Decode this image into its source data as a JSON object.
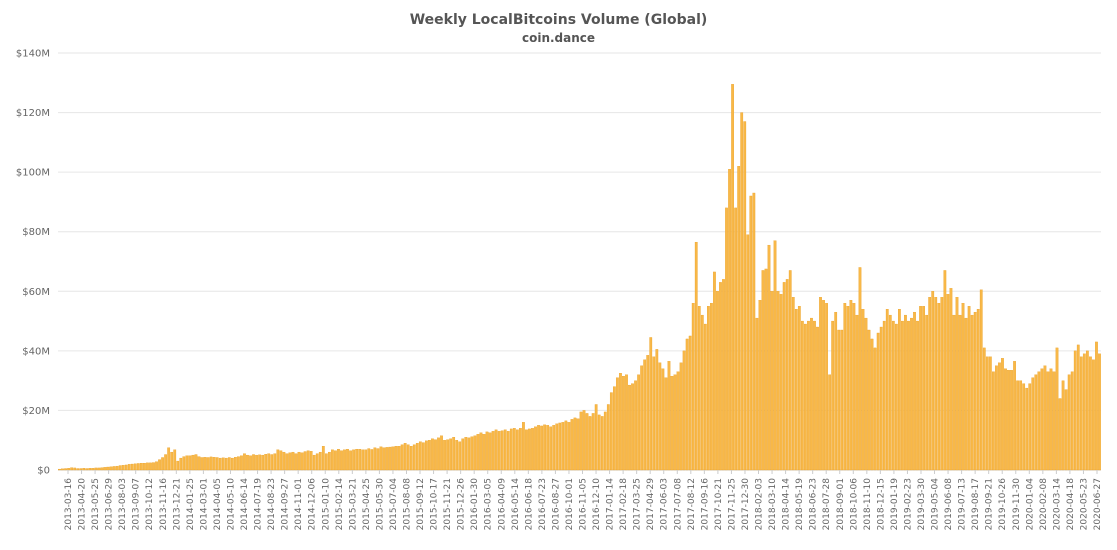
{
  "chart_data": {
    "type": "bar",
    "title": "Weekly LocalBitcoins Volume (Global)",
    "subtitle": "coin.dance",
    "xlabel": "",
    "ylabel": "",
    "ylim": [
      0,
      140
    ],
    "yticks": [
      "$0",
      "$20M",
      "$40M",
      "$60M",
      "$80M",
      "$100M",
      "$120M",
      "$140M"
    ],
    "grid": true,
    "legend": "none",
    "bar_color": "#f8b848",
    "bar_edge_color": "#e89a1a",
    "value_unit": "USD millions",
    "x_tick_labels": [
      "2013-03-16",
      "2013-04-20",
      "2013-05-25",
      "2013-06-29",
      "2013-08-03",
      "2013-09-07",
      "2013-10-12",
      "2013-11-16",
      "2013-12-21",
      "2014-01-25",
      "2014-03-01",
      "2014-04-05",
      "2014-05-10",
      "2014-06-14",
      "2014-07-19",
      "2014-08-23",
      "2014-09-27",
      "2014-11-01",
      "2014-12-06",
      "2015-01-10",
      "2015-02-14",
      "2015-03-21",
      "2015-04-25",
      "2015-05-30",
      "2015-07-04",
      "2015-08-08",
      "2015-09-12",
      "2015-10-17",
      "2015-11-21",
      "2015-12-26",
      "2016-01-30",
      "2016-03-05",
      "2016-04-09",
      "2016-05-14",
      "2016-06-18",
      "2016-07-23",
      "2016-08-27",
      "2016-10-01",
      "2016-11-05",
      "2016-12-10",
      "2017-01-14",
      "2017-02-18",
      "2017-03-25",
      "2017-04-29",
      "2017-06-03",
      "2017-07-08",
      "2017-08-12",
      "2017-09-16",
      "2017-10-21",
      "2017-11-25",
      "2017-12-30",
      "2018-02-03",
      "2018-03-10",
      "2018-04-14",
      "2018-05-19",
      "2018-06-23",
      "2018-07-28",
      "2018-09-01",
      "2018-10-06",
      "2018-11-10",
      "2018-12-15",
      "2019-01-19",
      "2019-02-23",
      "2019-03-30",
      "2019-05-04",
      "2019-06-08",
      "2019-07-13",
      "2019-08-17",
      "2019-09-21",
      "2019-10-26",
      "2019-11-30",
      "2020-01-04",
      "2020-02-08",
      "2020-03-14",
      "2020-04-18",
      "2020-05-23",
      "2020-06-27"
    ],
    "values": [
      0.3,
      0.4,
      0.5,
      0.6,
      0.8,
      0.7,
      0.5,
      0.5,
      0.6,
      0.5,
      0.6,
      0.6,
      0.7,
      0.7,
      0.8,
      0.9,
      1.0,
      1.1,
      1.2,
      1.3,
      1.5,
      1.6,
      1.7,
      1.9,
      2.0,
      2.1,
      2.2,
      2.3,
      2.3,
      2.4,
      2.4,
      2.5,
      2.8,
      3.5,
      4.2,
      5.2,
      7.5,
      6.0,
      6.8,
      3.0,
      4.0,
      4.5,
      4.8,
      4.8,
      5.0,
      5.2,
      4.5,
      4.2,
      4.3,
      4.2,
      4.4,
      4.3,
      4.2,
      4.0,
      4.1,
      4.0,
      4.2,
      4.0,
      4.3,
      4.5,
      4.8,
      5.5,
      5.0,
      4.8,
      5.2,
      5.0,
      5.1,
      5.0,
      5.3,
      5.5,
      5.2,
      5.5,
      6.8,
      6.5,
      6.0,
      5.5,
      5.8,
      6.0,
      5.5,
      6.0,
      5.8,
      6.2,
      6.5,
      6.3,
      5.0,
      5.5,
      6.0,
      8.0,
      5.5,
      6.0,
      6.8,
      6.5,
      7.0,
      6.5,
      6.8,
      7.0,
      6.5,
      6.8,
      7.0,
      7.0,
      6.8,
      6.8,
      7.2,
      6.9,
      7.5,
      7.2,
      7.8,
      7.5,
      7.6,
      7.7,
      7.8,
      8.0,
      8.0,
      8.5,
      9.0,
      8.5,
      8.0,
      8.5,
      9.0,
      9.5,
      9.2,
      9.8,
      10.0,
      10.5,
      10.2,
      10.8,
      11.5,
      10.0,
      10.2,
      10.5,
      11.0,
      10.0,
      9.5,
      10.5,
      11.0,
      10.8,
      11.2,
      11.5,
      12.0,
      12.5,
      12.0,
      12.8,
      12.5,
      13.0,
      13.5,
      13.0,
      13.2,
      13.5,
      13.0,
      13.8,
      14.0,
      13.5,
      14.0,
      16.0,
      13.5,
      13.8,
      14.0,
      14.5,
      15.0,
      14.8,
      15.2,
      15.0,
      14.5,
      15.0,
      15.5,
      15.8,
      16.0,
      16.5,
      16.0,
      17.0,
      17.5,
      17.2,
      19.5,
      20.0,
      19.0,
      18.0,
      19.0,
      22.0,
      18.5,
      18.0,
      19.5,
      22.0,
      26.0,
      28.0,
      31.0,
      32.5,
      31.5,
      32.0,
      28.5,
      29.0,
      30.0,
      32.0,
      35.0,
      37.0,
      38.5,
      44.5,
      38.0,
      40.5,
      36.0,
      34.0,
      31.0,
      36.5,
      31.5,
      32.0,
      33.0,
      36.0,
      40.0,
      44.0,
      45.0,
      56.0,
      76.5,
      55.0,
      52.0,
      49.0,
      55.0,
      56.0,
      66.5,
      60.0,
      63.0,
      64.0,
      88.0,
      101.0,
      129.5,
      88.0,
      102.0,
      120.0,
      117.0,
      79.0,
      92.0,
      93.0,
      51.0,
      57.0,
      67.0,
      67.5,
      75.5,
      60.0,
      77.0,
      60.0,
      59.0,
      63.0,
      64.0,
      67.0,
      58.0,
      54.0,
      55.0,
      50.0,
      49.0,
      50.0,
      51.0,
      50.0,
      48.0,
      58.0,
      57.0,
      56.0,
      32.0,
      50.0,
      53.0,
      47.0,
      47.0,
      56.0,
      55.0,
      57.0,
      56.0,
      52.0,
      68.0,
      54.0,
      51.0,
      47.0,
      44.0,
      41.0,
      46.0,
      48.0,
      50.0,
      54.0,
      52.0,
      50.0,
      49.0,
      54.0,
      50.0,
      52.0,
      50.0,
      51.0,
      53.0,
      50.0,
      55.0,
      55.0,
      52.0,
      58.0,
      60.0,
      58.0,
      56.0,
      58.0,
      67.0,
      59.0,
      61.0,
      52.0,
      58.0,
      52.0,
      56.0,
      51.0,
      55.0,
      52.0,
      53.0,
      54.0,
      60.5,
      41.0,
      38.0,
      38.0,
      33.0,
      35.0,
      36.0,
      37.5,
      34.0,
      33.5,
      33.5,
      36.5,
      30.0,
      30.0,
      29.0,
      27.5,
      29.0,
      31.0,
      32.0,
      33.0,
      34.0,
      35.0,
      33.0,
      34.0,
      33.0,
      41.0,
      24.0,
      30.0,
      27.0,
      32.0,
      33.0,
      40.0,
      42.0,
      38.0,
      39.0,
      40.0,
      38.0,
      37.0,
      43.0,
      39.0
    ]
  }
}
